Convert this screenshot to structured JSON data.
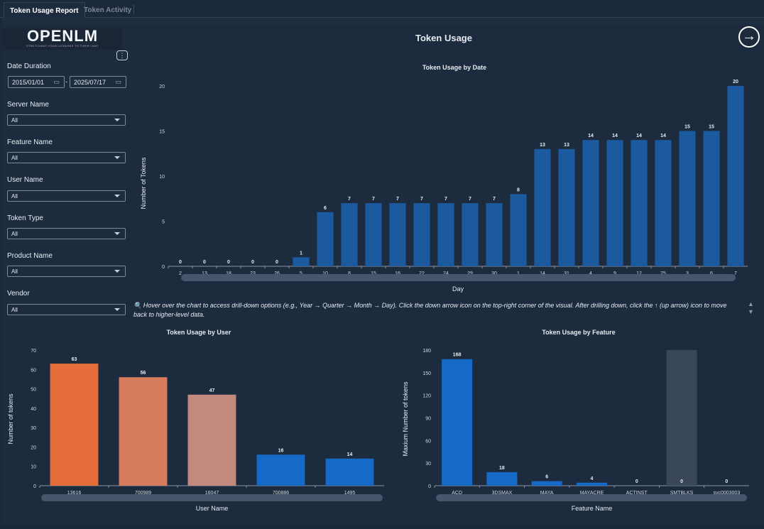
{
  "tabs": [
    {
      "label": "Token Usage Report",
      "active": true
    },
    {
      "label": "Token Activity",
      "active": false
    }
  ],
  "logo": {
    "text": "OPENLM",
    "tagline": "STRETCHING YOUR LICENSES TO THEIR LIMIT"
  },
  "page_title": "Token Usage",
  "nav_icon": "arrow-right-circle-icon",
  "filters": {
    "date_label": "Date Duration",
    "date_from": "2015/01/01",
    "date_to": "2025/07/17",
    "date_sep": "-",
    "server_label": "Server Name",
    "server_value": "All",
    "feature_label": "Feature Name",
    "feature_value": "All",
    "user_label": "User Name",
    "user_value": "All",
    "token_type_label": "Token Type",
    "token_type_value": "All",
    "product_label": "Product Name",
    "product_value": "All",
    "vendor_label": "Vendor",
    "vendor_value": "All"
  },
  "hint": "🔍 Hover over the chart to access drill-down options (e.g., Year → Quarter → Month → Day). Click the down arrow icon on the top-right corner of the visual. After drilling down, click the ↑ (up arrow) icon to move back to higher-level data.",
  "chart_data": [
    {
      "type": "bar",
      "title": "Token Usage by Date",
      "xlabel": "Day",
      "ylabel": "Number of Tokens",
      "ylim": [
        0,
        20
      ],
      "yticks": [
        0,
        5,
        10,
        15,
        20
      ],
      "categories": [
        "2",
        "13",
        "18",
        "23",
        "26",
        "5",
        "10",
        "8",
        "15",
        "16",
        "22",
        "24",
        "29",
        "30",
        "1",
        "14",
        "31",
        "4",
        "9",
        "12",
        "25",
        "3",
        "6",
        "7"
      ],
      "values": [
        0,
        0,
        0,
        0,
        0,
        1,
        6,
        7,
        7,
        7,
        7,
        7,
        7,
        7,
        8,
        13,
        13,
        14,
        14,
        14,
        14,
        15,
        15,
        20
      ],
      "color": "#1c5aa0"
    },
    {
      "type": "bar",
      "title": "Token Usage by User",
      "xlabel": "User Name",
      "ylabel": "Number of tokens",
      "ylim": [
        0,
        70
      ],
      "yticks": [
        0,
        10,
        20,
        30,
        40,
        50,
        60,
        70
      ],
      "categories": [
        "13616",
        "700989",
        "16047",
        "700886",
        "1495"
      ],
      "values": [
        63,
        56,
        47,
        16,
        14
      ],
      "colors": [
        "#e56d3a",
        "#d77c5c",
        "#c3897c",
        "#1569c7",
        "#1569c7"
      ]
    },
    {
      "type": "bar",
      "title": "Token Usage by Feature",
      "xlabel": "Feature Name",
      "ylabel": "Maxium Number of tokens",
      "ylim": [
        0,
        180
      ],
      "yticks": [
        0,
        30,
        60,
        90,
        120,
        150,
        180
      ],
      "categories": [
        "ACD",
        "3DSMAX",
        "MAYA",
        "MAYACRE",
        "ACTINST",
        "SMTBLKS",
        "svc0003003"
      ],
      "values": [
        168,
        18,
        6,
        4,
        0,
        0,
        0
      ],
      "color": "#1569c7",
      "highlighted": "SMTBLKS"
    }
  ]
}
